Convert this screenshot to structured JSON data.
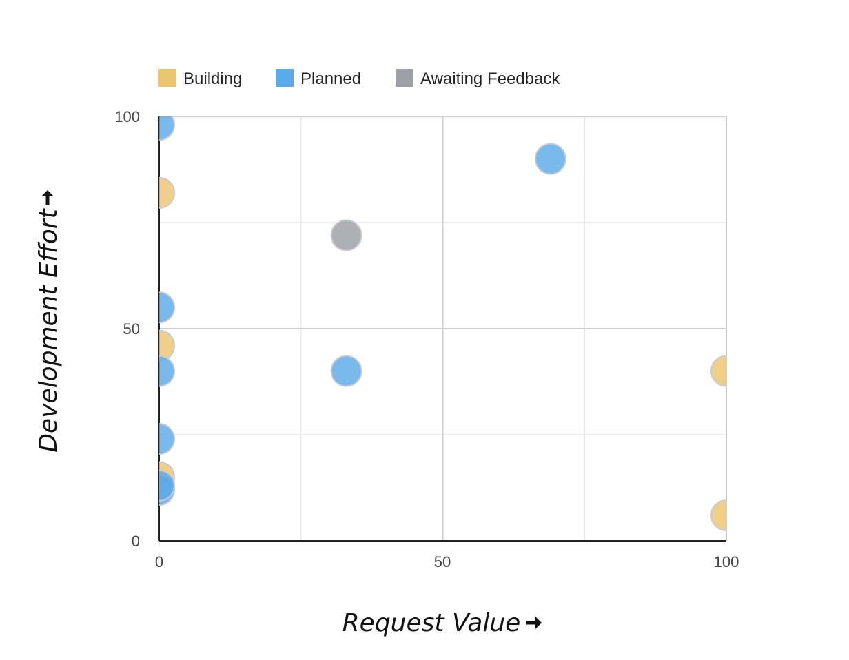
{
  "chart_data": {
    "type": "scatter",
    "xlabel": "Request Value",
    "ylabel": "Development Effort",
    "xlim": [
      0,
      100
    ],
    "ylim": [
      0,
      100
    ],
    "x_ticks": [
      "0",
      "50",
      "100"
    ],
    "y_ticks": [
      "0",
      "50",
      "100"
    ],
    "grid": true,
    "legend": "top-left",
    "series": [
      {
        "name": "Building",
        "color": "#EBC46F",
        "points": [
          {
            "x": 0,
            "y": 82
          },
          {
            "x": 0,
            "y": 46
          },
          {
            "x": 0,
            "y": 15
          },
          {
            "x": 100,
            "y": 40
          },
          {
            "x": 100,
            "y": 6
          }
        ]
      },
      {
        "name": "Planned",
        "color": "#5BAAE8",
        "points": [
          {
            "x": 0,
            "y": 98
          },
          {
            "x": 0,
            "y": 55
          },
          {
            "x": 0,
            "y": 40
          },
          {
            "x": 0,
            "y": 24
          },
          {
            "x": 0,
            "y": 12
          },
          {
            "x": 0,
            "y": 13
          },
          {
            "x": 33,
            "y": 40
          },
          {
            "x": 69,
            "y": 90
          }
        ]
      },
      {
        "name": "Awaiting Feedback",
        "color": "#9D9FA6",
        "points": [
          {
            "x": 33,
            "y": 72
          }
        ]
      }
    ]
  }
}
